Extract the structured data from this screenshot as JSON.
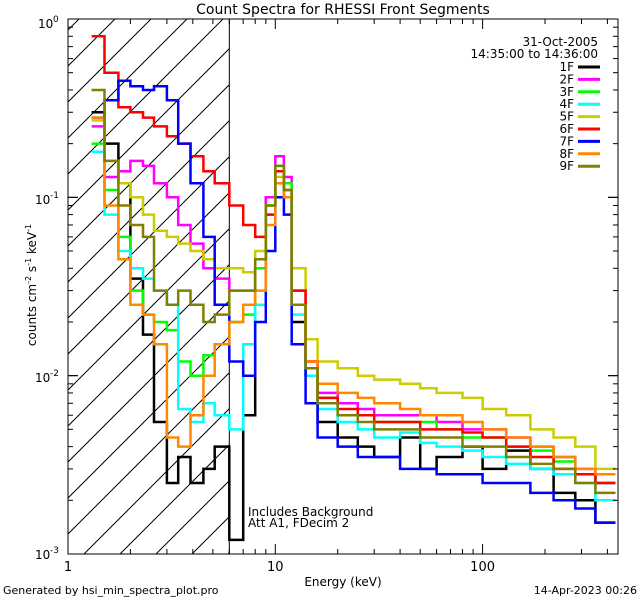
{
  "chart_data": {
    "type": "line",
    "title": "Count Spectra for RHESSI Front Segments",
    "xlabel": "Energy (keV)",
    "ylabel_parts": {
      "base": "counts cm",
      "exp1": "-2",
      "mid1": " s",
      "exp2": "-1",
      "mid2": " keV",
      "exp3": "-1"
    },
    "x_scale": "log",
    "y_scale": "log",
    "xlim": [
      1,
      450
    ],
    "ylim": [
      0.001,
      1
    ],
    "x_ticks": [
      {
        "value": 1,
        "label": "1"
      },
      {
        "value": 10,
        "label": "10"
      },
      {
        "value": 100,
        "label": "100"
      }
    ],
    "y_ticks": [
      {
        "value": 1,
        "base": "10",
        "exp": "0"
      },
      {
        "value": 0.1,
        "base": "10",
        "exp": "-1"
      },
      {
        "value": 0.01,
        "base": "10",
        "exp": "-2"
      },
      {
        "value": 0.001,
        "base": "10",
        "exp": "-3"
      }
    ],
    "date": "31-Oct-2005",
    "time_range": "14:35:00 to 14:36:00",
    "annotation_lines": [
      "Includes Background",
      "Att A1, FDecim 2"
    ],
    "attenuator_cutoff_kev": 6,
    "footer_left": "Generated by hsi_min_spectra_plot.pro",
    "footer_right": "14-Apr-2023 00:26",
    "series": [
      {
        "name": "1F",
        "color": "#000000",
        "energies": [
          1.3,
          1.5,
          1.75,
          2.0,
          2.3,
          2.6,
          3.0,
          3.4,
          3.9,
          4.5,
          5.1,
          6.0,
          7.0,
          8.0,
          9.0,
          10.0,
          11.0,
          12.0,
          14.0,
          16.0,
          20.0,
          25.0,
          30.0,
          40.0,
          50.0,
          60.0,
          80.0,
          100.0,
          130.0,
          170.0,
          220.0,
          280.0,
          350.0
        ],
        "values": [
          0.3,
          0.2,
          0.12,
          0.035,
          0.017,
          0.0055,
          0.0025,
          0.0035,
          0.0025,
          0.003,
          0.004,
          0.0012,
          0.006,
          0.04,
          0.1,
          0.14,
          0.11,
          0.02,
          0.01,
          0.0055,
          0.0045,
          0.004,
          0.0035,
          0.0045,
          0.003,
          0.0035,
          0.004,
          0.003,
          0.0038,
          0.003,
          0.0022,
          0.002,
          0.0015
        ]
      },
      {
        "name": "2F",
        "color": "#ff00ff",
        "energies": [
          1.3,
          1.5,
          1.75,
          2.0,
          2.3,
          2.6,
          3.0,
          3.4,
          3.9,
          4.5,
          5.1,
          6.0,
          7.0,
          8.0,
          9.0,
          10.0,
          11.0,
          12.0,
          14.0,
          16.0,
          20.0,
          25.0,
          30.0,
          40.0,
          50.0,
          60.0,
          80.0,
          100.0,
          130.0,
          170.0,
          220.0,
          280.0,
          350.0
        ],
        "values": [
          0.25,
          0.13,
          0.14,
          0.16,
          0.15,
          0.12,
          0.1,
          0.07,
          0.055,
          0.04,
          0.035,
          0.03,
          0.03,
          0.04,
          0.1,
          0.17,
          0.13,
          0.03,
          0.012,
          0.008,
          0.007,
          0.0065,
          0.006,
          0.006,
          0.006,
          0.0055,
          0.005,
          0.005,
          0.0045,
          0.004,
          0.0035,
          0.003,
          0.0025
        ]
      },
      {
        "name": "3F",
        "color": "#00ff00",
        "energies": [
          1.3,
          1.5,
          1.75,
          2.0,
          2.3,
          2.6,
          3.0,
          3.4,
          3.9,
          4.5,
          5.1,
          6.0,
          7.0,
          8.0,
          9.0,
          10.0,
          11.0,
          12.0,
          14.0,
          16.0,
          20.0,
          25.0,
          30.0,
          40.0,
          50.0,
          60.0,
          80.0,
          100.0,
          130.0,
          170.0,
          220.0,
          280.0,
          350.0
        ],
        "values": [
          0.2,
          0.11,
          0.06,
          0.03,
          0.022,
          0.02,
          0.018,
          0.012,
          0.01,
          0.013,
          0.015,
          0.02,
          0.022,
          0.04,
          0.09,
          0.15,
          0.12,
          0.025,
          0.011,
          0.0075,
          0.006,
          0.006,
          0.0055,
          0.0055,
          0.0055,
          0.005,
          0.0045,
          0.0045,
          0.004,
          0.0038,
          0.0033,
          0.0028,
          0.0025
        ]
      },
      {
        "name": "4F",
        "color": "#00ffff",
        "energies": [
          1.3,
          1.5,
          1.75,
          2.0,
          2.3,
          2.6,
          3.0,
          3.4,
          3.9,
          4.5,
          5.1,
          6.0,
          7.0,
          8.0,
          9.0,
          10.0,
          11.0,
          12.0,
          14.0,
          16.0,
          20.0,
          25.0,
          30.0,
          40.0,
          50.0,
          60.0,
          80.0,
          100.0,
          130.0,
          170.0,
          220.0,
          280.0,
          350.0
        ],
        "values": [
          0.18,
          0.08,
          0.05,
          0.04,
          0.035,
          0.03,
          0.025,
          0.0065,
          0.0055,
          0.007,
          0.006,
          0.005,
          0.015,
          0.025,
          0.08,
          0.14,
          0.1,
          0.022,
          0.01,
          0.0065,
          0.0055,
          0.005,
          0.0045,
          0.0048,
          0.0042,
          0.004,
          0.0038,
          0.0035,
          0.0032,
          0.003,
          0.0028,
          0.0025,
          0.002
        ]
      },
      {
        "name": "5F",
        "color": "#cccc00",
        "energies": [
          1.3,
          1.5,
          1.75,
          2.0,
          2.3,
          2.6,
          3.0,
          3.4,
          3.9,
          4.5,
          5.1,
          6.0,
          7.0,
          8.0,
          9.0,
          10.0,
          11.0,
          12.0,
          14.0,
          16.0,
          20.0,
          25.0,
          30.0,
          40.0,
          50.0,
          60.0,
          80.0,
          100.0,
          130.0,
          170.0,
          220.0,
          280.0,
          350.0
        ],
        "values": [
          0.27,
          0.16,
          0.12,
          0.1,
          0.08,
          0.065,
          0.06,
          0.055,
          0.05,
          0.045,
          0.04,
          0.04,
          0.038,
          0.05,
          0.09,
          0.13,
          0.11,
          0.04,
          0.016,
          0.012,
          0.011,
          0.01,
          0.0095,
          0.009,
          0.0085,
          0.008,
          0.0075,
          0.0065,
          0.006,
          0.005,
          0.0045,
          0.004,
          0.003
        ]
      },
      {
        "name": "6F",
        "color": "#ff0000",
        "energies": [
          1.3,
          1.5,
          1.75,
          2.0,
          2.3,
          2.6,
          3.0,
          3.4,
          3.9,
          4.5,
          5.1,
          6.0,
          7.0,
          8.0,
          9.0,
          10.0,
          11.0,
          12.0,
          14.0,
          16.0,
          20.0,
          25.0,
          30.0,
          40.0,
          50.0,
          60.0,
          80.0,
          100.0,
          130.0,
          170.0,
          220.0,
          280.0,
          350.0
        ],
        "values": [
          0.8,
          0.5,
          0.32,
          0.3,
          0.28,
          0.25,
          0.22,
          0.2,
          0.17,
          0.14,
          0.12,
          0.09,
          0.07,
          0.06,
          0.08,
          0.14,
          0.1,
          0.03,
          0.012,
          0.0075,
          0.0065,
          0.006,
          0.0055,
          0.0055,
          0.005,
          0.005,
          0.0048,
          0.0045,
          0.004,
          0.0035,
          0.003,
          0.0028,
          0.0025
        ]
      },
      {
        "name": "7F",
        "color": "#0000ff",
        "energies": [
          1.3,
          1.5,
          1.75,
          2.0,
          2.3,
          2.6,
          3.0,
          3.4,
          3.9,
          4.5,
          5.1,
          6.0,
          7.0,
          8.0,
          9.0,
          10.0,
          11.0,
          12.0,
          14.0,
          16.0,
          20.0,
          25.0,
          30.0,
          40.0,
          50.0,
          60.0,
          80.0,
          100.0,
          130.0,
          170.0,
          220.0,
          280.0,
          350.0
        ],
        "values": [
          0.28,
          0.35,
          0.45,
          0.42,
          0.4,
          0.42,
          0.35,
          0.2,
          0.12,
          0.06,
          0.025,
          0.012,
          0.01,
          0.02,
          0.05,
          0.1,
          0.08,
          0.015,
          0.007,
          0.0045,
          0.004,
          0.0035,
          0.0035,
          0.003,
          0.003,
          0.0028,
          0.0028,
          0.0025,
          0.0025,
          0.0022,
          0.002,
          0.0018,
          0.0015
        ]
      },
      {
        "name": "8F",
        "color": "#ff8800",
        "energies": [
          1.3,
          1.5,
          1.75,
          2.0,
          2.3,
          2.6,
          3.0,
          3.4,
          3.9,
          4.5,
          5.1,
          6.0,
          7.0,
          8.0,
          9.0,
          10.0,
          11.0,
          12.0,
          14.0,
          16.0,
          20.0,
          25.0,
          30.0,
          40.0,
          50.0,
          60.0,
          80.0,
          100.0,
          130.0,
          170.0,
          220.0,
          280.0,
          350.0
        ],
        "values": [
          0.28,
          0.09,
          0.045,
          0.025,
          0.022,
          0.015,
          0.0045,
          0.004,
          0.006,
          0.01,
          0.015,
          0.02,
          0.025,
          0.03,
          0.07,
          0.12,
          0.1,
          0.025,
          0.012,
          0.009,
          0.008,
          0.0075,
          0.007,
          0.0065,
          0.006,
          0.006,
          0.0055,
          0.005,
          0.0045,
          0.004,
          0.0035,
          0.003,
          0.0028
        ]
      },
      {
        "name": "9F",
        "color": "#808000",
        "energies": [
          1.3,
          1.5,
          1.75,
          2.0,
          2.3,
          2.6,
          3.0,
          3.4,
          3.9,
          4.5,
          5.1,
          6.0,
          7.0,
          8.0,
          9.0,
          10.0,
          11.0,
          12.0,
          14.0,
          16.0,
          20.0,
          25.0,
          30.0,
          40.0,
          50.0,
          60.0,
          80.0,
          100.0,
          130.0,
          170.0,
          220.0,
          280.0,
          350.0
        ],
        "values": [
          0.4,
          0.16,
          0.09,
          0.07,
          0.06,
          0.03,
          0.025,
          0.03,
          0.025,
          0.02,
          0.022,
          0.03,
          0.03,
          0.045,
          0.09,
          0.15,
          0.11,
          0.025,
          0.011,
          0.007,
          0.006,
          0.0055,
          0.005,
          0.005,
          0.0045,
          0.0045,
          0.004,
          0.004,
          0.0035,
          0.0032,
          0.003,
          0.0025,
          0.0022
        ]
      }
    ]
  }
}
